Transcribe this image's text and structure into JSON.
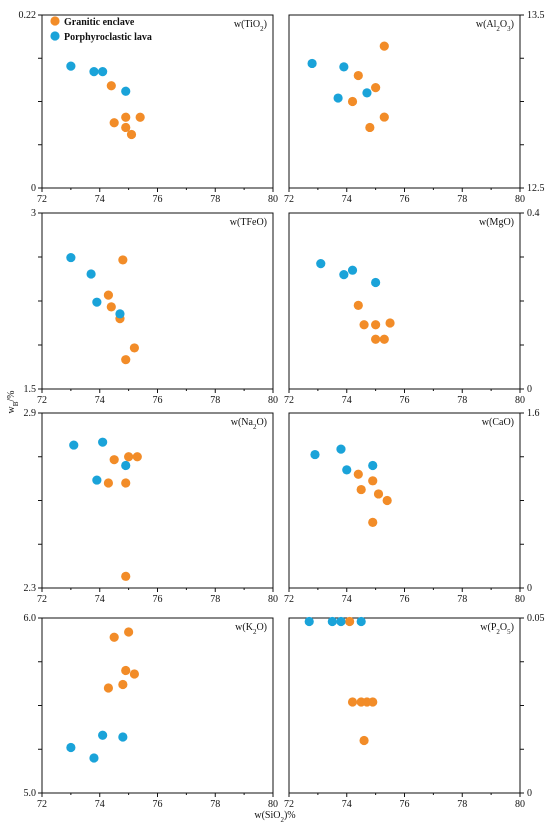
{
  "figure": {
    "y_axis_label": "w",
    "y_axis_label_sub": "B",
    "y_axis_label_suffix": "/%",
    "x_axis_label": "w(SiO",
    "x_axis_label_sub": "2",
    "x_axis_label_suffix": ")%"
  },
  "legend": [
    {
      "label": "Granitic enclave",
      "color": "#f28c28"
    },
    {
      "label": "Porphyroclastic lava",
      "color": "#1aa3d9"
    }
  ],
  "chart_data": [
    {
      "type": "scatter",
      "title": "w(TiO",
      "title_sub": "2",
      "title_suffix": ")",
      "xlim": [
        72,
        80
      ],
      "xticks": [
        "72",
        "74",
        "76",
        "78",
        "80"
      ],
      "ylim": [
        0,
        0.22
      ],
      "ytick_labels": [
        "0",
        "0.22"
      ],
      "series": [
        {
          "name": "Granitic enclave",
          "color": "#f28c28",
          "x": [
            74.4,
            74.9,
            75.4,
            74.5,
            74.9,
            75.1
          ],
          "y": [
            0.13,
            0.09,
            0.09,
            0.083,
            0.077,
            0.068
          ]
        },
        {
          "name": "Porphyroclastic lava",
          "color": "#1aa3d9",
          "x": [
            73.0,
            73.8,
            74.1,
            74.9
          ],
          "y": [
            0.155,
            0.148,
            0.148,
            0.123
          ]
        }
      ]
    },
    {
      "type": "scatter",
      "title": "w(Al",
      "title_sub": "2",
      "title_mid": "O",
      "title_sub2": "3",
      "title_suffix": ")",
      "xlim": [
        72,
        80
      ],
      "xticks": [
        "72",
        "74",
        "76",
        "78",
        "80"
      ],
      "ylim": [
        12.5,
        13.5
      ],
      "ytick_labels": [
        "12.5",
        "13.5"
      ],
      "ytick_side": "right",
      "series": [
        {
          "name": "Granitic enclave",
          "color": "#f28c28",
          "x": [
            75.3,
            74.4,
            75.0,
            74.2,
            75.3,
            74.8
          ],
          "y": [
            13.32,
            13.15,
            13.08,
            13.0,
            12.91,
            12.85
          ]
        },
        {
          "name": "Porphyroclastic lava",
          "color": "#1aa3d9",
          "x": [
            72.8,
            73.9,
            73.7,
            74.7
          ],
          "y": [
            13.22,
            13.2,
            13.02,
            13.05
          ]
        }
      ]
    },
    {
      "type": "scatter",
      "title": "w(TFeO)",
      "xlim": [
        72,
        80
      ],
      "xticks": [
        "72",
        "74",
        "76",
        "78",
        "80"
      ],
      "ylim": [
        1.5,
        3
      ],
      "ytick_labels": [
        "1.5",
        "3"
      ],
      "series": [
        {
          "name": "Granitic enclave",
          "color": "#f28c28",
          "x": [
            74.8,
            74.3,
            74.4,
            74.7,
            75.2,
            74.9
          ],
          "y": [
            2.6,
            2.3,
            2.2,
            2.1,
            1.85,
            1.75
          ]
        },
        {
          "name": "Porphyroclastic lava",
          "color": "#1aa3d9",
          "x": [
            73.0,
            73.7,
            73.9,
            74.7
          ],
          "y": [
            2.62,
            2.48,
            2.24,
            2.14
          ]
        }
      ]
    },
    {
      "type": "scatter",
      "title": "w(MgO)",
      "xlim": [
        72,
        80
      ],
      "xticks": [
        "72",
        "74",
        "76",
        "78",
        "80"
      ],
      "ylim": [
        0,
        0.4
      ],
      "ytick_labels": [
        "0",
        "0.4"
      ],
      "ytick_side": "right",
      "series": [
        {
          "name": "Granitic enclave",
          "color": "#f28c28",
          "x": [
            74.4,
            74.6,
            75.0,
            75.5,
            75.0,
            75.3
          ],
          "y": [
            0.19,
            0.146,
            0.146,
            0.15,
            0.113,
            0.113
          ]
        },
        {
          "name": "Porphyroclastic lava",
          "color": "#1aa3d9",
          "x": [
            73.1,
            74.2,
            73.9,
            75.0
          ],
          "y": [
            0.285,
            0.27,
            0.26,
            0.242
          ]
        }
      ]
    },
    {
      "type": "scatter",
      "title": "w(Na",
      "title_sub": "2",
      "title_suffix": "O)",
      "xlim": [
        72,
        80
      ],
      "xticks": [
        "72",
        "74",
        "76",
        "78",
        "80"
      ],
      "ylim": [
        2.3,
        2.9
      ],
      "ytick_labels": [
        "2.3",
        "2.9"
      ],
      "series": [
        {
          "name": "Granitic enclave",
          "color": "#f28c28",
          "x": [
            75.0,
            75.3,
            74.5,
            74.3,
            74.9,
            74.9
          ],
          "y": [
            2.75,
            2.75,
            2.74,
            2.66,
            2.66,
            2.34
          ]
        },
        {
          "name": "Porphyroclastic lava",
          "color": "#1aa3d9",
          "x": [
            73.1,
            74.1,
            74.9,
            73.9
          ],
          "y": [
            2.79,
            2.8,
            2.72,
            2.67
          ]
        }
      ]
    },
    {
      "type": "scatter",
      "title": "w(CaO)",
      "xlim": [
        72,
        80
      ],
      "xticks": [
        "72",
        "74",
        "76",
        "78",
        "80"
      ],
      "ylim": [
        0,
        1.6
      ],
      "ytick_labels": [
        "0",
        "1.6"
      ],
      "ytick_side": "right",
      "series": [
        {
          "name": "Granitic enclave",
          "color": "#f28c28",
          "x": [
            74.4,
            74.9,
            74.5,
            75.1,
            75.4,
            74.9
          ],
          "y": [
            1.04,
            0.98,
            0.9,
            0.86,
            0.8,
            0.6
          ]
        },
        {
          "name": "Porphyroclastic lava",
          "color": "#1aa3d9",
          "x": [
            72.9,
            73.8,
            74.0,
            74.9
          ],
          "y": [
            1.22,
            1.27,
            1.08,
            1.12
          ]
        }
      ]
    },
    {
      "type": "scatter",
      "title": "w(K",
      "title_sub": "2",
      "title_suffix": "O)",
      "xlim": [
        72,
        80
      ],
      "xticks": [
        "72",
        "74",
        "76",
        "78",
        "80"
      ],
      "ylim": [
        5.0,
        6.0
      ],
      "ytick_labels": [
        "5.0",
        "6.0"
      ],
      "series": [
        {
          "name": "Granitic enclave",
          "color": "#f28c28",
          "x": [
            75.0,
            74.5,
            74.9,
            75.2,
            74.8,
            74.3
          ],
          "y": [
            5.92,
            5.89,
            5.7,
            5.68,
            5.62,
            5.6
          ]
        },
        {
          "name": "Porphyroclastic lava",
          "color": "#1aa3d9",
          "x": [
            74.1,
            74.8,
            73.0,
            73.8
          ],
          "y": [
            5.33,
            5.32,
            5.26,
            5.2
          ]
        }
      ]
    },
    {
      "type": "scatter",
      "title": "w(P",
      "title_sub": "2",
      "title_mid": "O",
      "title_sub2": "5",
      "title_suffix": ")",
      "xlim": [
        72,
        80
      ],
      "xticks": [
        "72",
        "74",
        "76",
        "78",
        "80"
      ],
      "ylim": [
        0,
        0.05
      ],
      "ytick_labels": [
        "0",
        "0.05"
      ],
      "ytick_side": "right",
      "series": [
        {
          "name": "Granitic enclave",
          "color": "#f28c28",
          "x": [
            74.1,
            74.2,
            74.5,
            74.7,
            74.9,
            74.6
          ],
          "y": [
            0.049,
            0.026,
            0.026,
            0.026,
            0.026,
            0.015
          ]
        },
        {
          "name": "Porphyroclastic lava",
          "color": "#1aa3d9",
          "x": [
            72.7,
            73.5,
            73.8,
            74.5
          ],
          "y": [
            0.049,
            0.049,
            0.049,
            0.049
          ]
        }
      ]
    }
  ]
}
